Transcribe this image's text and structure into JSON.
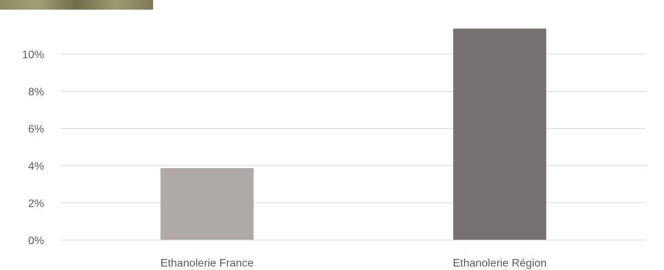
{
  "chart_data": {
    "type": "bar",
    "title": "",
    "xlabel": "",
    "ylabel": "",
    "categories": [
      "Ethanolerie France",
      "Ethanolerie Région"
    ],
    "values": [
      0.0385,
      0.1135
    ],
    "ylim": [
      0,
      0.11
    ],
    "yticks": [
      0,
      0.02,
      0.04,
      0.06,
      0.08,
      0.1
    ],
    "ytick_labels": [
      "0%",
      "2%",
      "4%",
      "6%",
      "8%",
      "10%"
    ],
    "grid": true,
    "legend": "none",
    "colors": [
      "#afaaa8",
      "#767170"
    ]
  },
  "colors": {
    "grid": "#d9d9d9",
    "axis_text": "#595959"
  }
}
